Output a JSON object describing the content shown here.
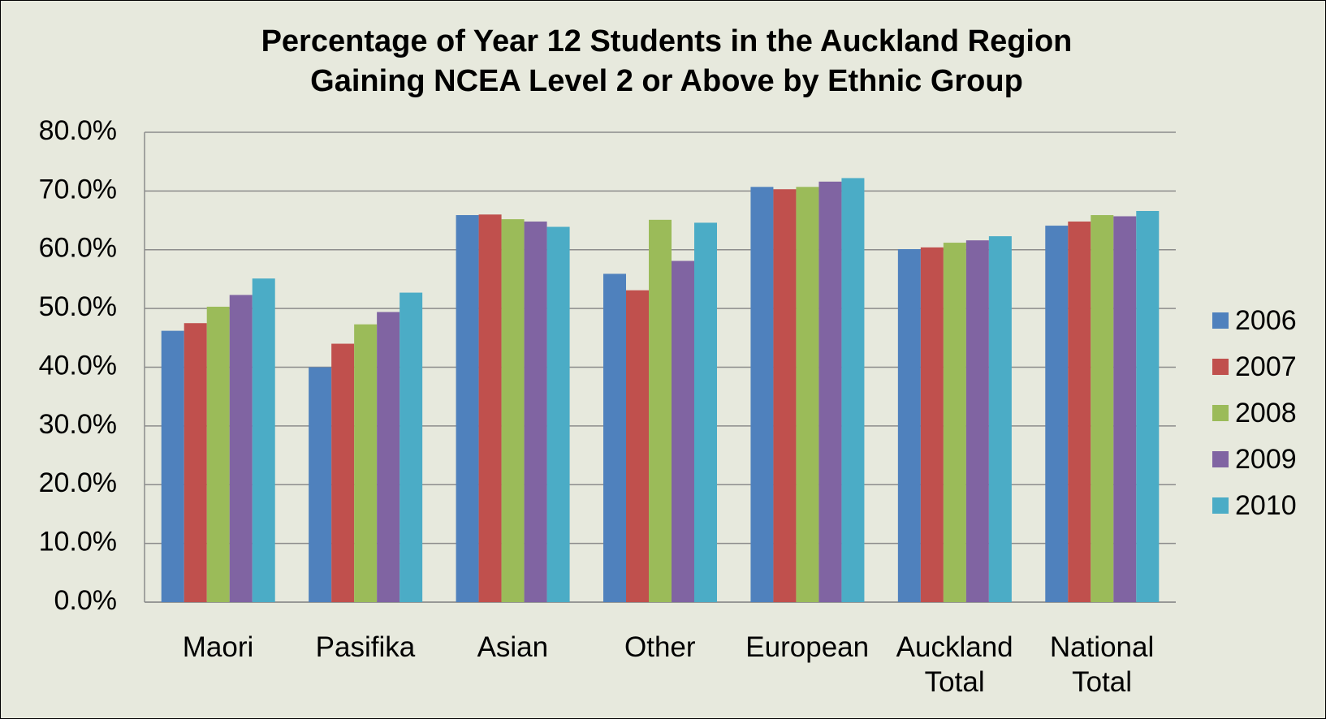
{
  "chart_data": {
    "type": "bar",
    "title": [
      "Percentage of Year 12 Students in the Auckland Region",
      "Gaining NCEA Level 2 or Above by Ethnic Group"
    ],
    "categories": [
      "Maori",
      "Pasifika",
      "Asian",
      "Other",
      "European",
      "Auckland Total",
      "National Total"
    ],
    "series": [
      {
        "name": "2006",
        "color": "#4f81bd",
        "values": [
          46.2,
          40.0,
          65.9,
          55.9,
          70.7,
          60.1,
          64.1
        ]
      },
      {
        "name": "2007",
        "color": "#c0504d",
        "values": [
          47.5,
          44.0,
          66.0,
          53.1,
          70.3,
          60.4,
          64.8
        ]
      },
      {
        "name": "2008",
        "color": "#9bbb59",
        "values": [
          50.3,
          47.3,
          65.2,
          65.1,
          70.7,
          61.2,
          65.9
        ]
      },
      {
        "name": "2009",
        "color": "#8064a2",
        "values": [
          52.3,
          49.4,
          64.8,
          58.1,
          71.6,
          61.6,
          65.7
        ]
      },
      {
        "name": "2010",
        "color": "#4bacc6",
        "values": [
          55.1,
          52.7,
          63.9,
          64.6,
          72.2,
          62.3,
          66.6
        ]
      }
    ],
    "ylim": [
      0,
      80
    ],
    "yticks": [
      {
        "value": 0,
        "label": "0.0%"
      },
      {
        "value": 10,
        "label": "10.0%"
      },
      {
        "value": 20,
        "label": "20.0%"
      },
      {
        "value": 30,
        "label": "30.0%"
      },
      {
        "value": 40,
        "label": "40.0%"
      },
      {
        "value": 50,
        "label": "50.0%"
      },
      {
        "value": 60,
        "label": "60.0%"
      },
      {
        "value": 70,
        "label": "70.0%"
      },
      {
        "value": 80,
        "label": "80.0%"
      }
    ],
    "grid": true,
    "legend": "right"
  }
}
